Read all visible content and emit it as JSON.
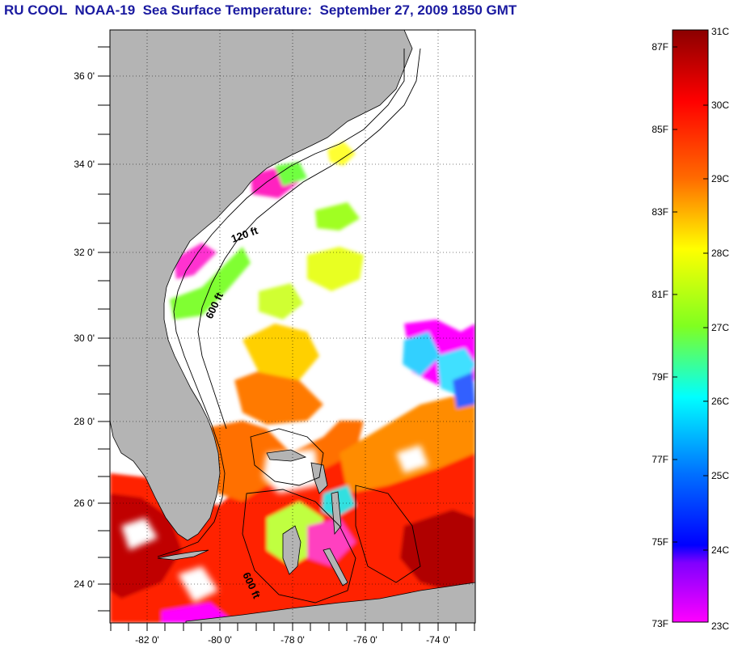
{
  "title": "RU COOL  NOAA-19  Sea Surface Temperature:  September 27, 2009 1850 GMT",
  "map": {
    "lon_labels": [
      "-82 0'",
      "-80 0'",
      "-78 0'",
      "-76 0'",
      "-74 0'"
    ],
    "lat_labels": [
      "36 0'",
      "34 0'",
      "32 0'",
      "30 0'",
      "28 0'",
      "26 0'",
      "24 0'"
    ],
    "contour_labels": [
      "120 ft",
      "600 ft",
      "600 ft"
    ],
    "land_color": "#b4b4b4",
    "ocean_color": "#ffffff"
  },
  "colorbar": {
    "fahrenheit_labels": [
      "87F",
      "85F",
      "83F",
      "81F",
      "79F",
      "77F",
      "75F",
      "73F"
    ],
    "celsius_labels": [
      "31C",
      "30C",
      "29C",
      "28C",
      "27C",
      "26C",
      "25C",
      "24C",
      "23C"
    ],
    "colors": [
      "#8b0000",
      "#ff0000",
      "#ff8800",
      "#ffff00",
      "#80ff00",
      "#00ffff",
      "#0070ff",
      "#0000ff",
      "#8000ff",
      "#ff00ff"
    ]
  }
}
